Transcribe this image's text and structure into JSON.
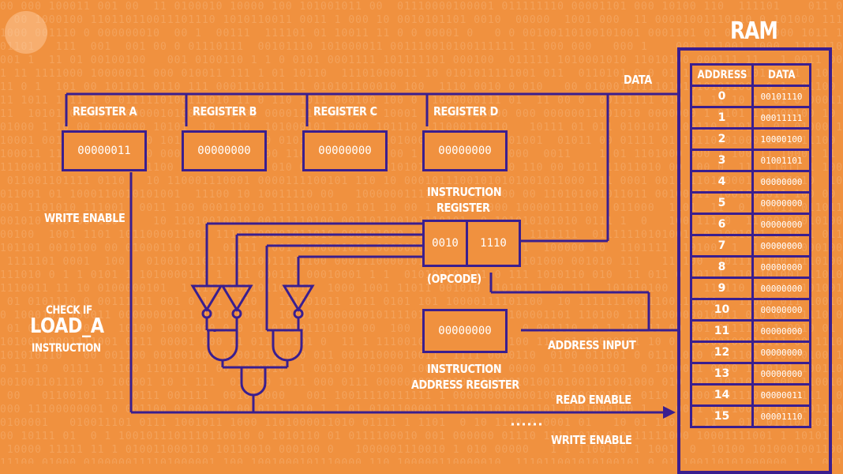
{
  "registers": [
    {
      "name": "REGISTER A",
      "value": "00000011"
    },
    {
      "name": "REGISTER B",
      "value": "00000000"
    },
    {
      "name": "REGISTER C",
      "value": "00000000"
    },
    {
      "name": "REGISTER D",
      "value": "00000000"
    }
  ],
  "instruction_register": {
    "title_line1": "INSTRUCTION",
    "title_line2": "REGISTER",
    "opcode": "0010",
    "operand": "1110",
    "opcode_label": "(OPCODE)"
  },
  "instruction_address_register": {
    "value": "00000000",
    "title_line1": "INSTRUCTION",
    "title_line2": "ADDRESS REGISTER"
  },
  "labels": {
    "data": "DATA",
    "write_enable_left": "WRITE ENABLE",
    "check_if": "CHECK IF",
    "load_a": "LOAD_A",
    "instruction": "INSTRUCTION",
    "address_input": "ADDRESS INPUT",
    "read_enable": "READ ENABLE",
    "write_enable_bottom": "WRITE ENABLE"
  },
  "ram": {
    "title": "RAM",
    "headers": [
      "ADDRESS",
      "DATA"
    ],
    "rows": [
      {
        "address": "0",
        "data": "00101110"
      },
      {
        "address": "1",
        "data": "00011111"
      },
      {
        "address": "2",
        "data": "10000100"
      },
      {
        "address": "3",
        "data": "01001101"
      },
      {
        "address": "4",
        "data": "00000000"
      },
      {
        "address": "5",
        "data": "00000000"
      },
      {
        "address": "6",
        "data": "00000000"
      },
      {
        "address": "7",
        "data": "00000000"
      },
      {
        "address": "8",
        "data": "00000000"
      },
      {
        "address": "9",
        "data": "00000000"
      },
      {
        "address": "10",
        "data": "00000000"
      },
      {
        "address": "11",
        "data": "00000000"
      },
      {
        "address": "12",
        "data": "00000000"
      },
      {
        "address": "13",
        "data": "00000000"
      },
      {
        "address": "14",
        "data": "00000011"
      },
      {
        "address": "15",
        "data": "00001110"
      }
    ]
  },
  "colors": {
    "background": "#f0913f",
    "wire": "#3a1e8f",
    "text": "#ffffff"
  }
}
